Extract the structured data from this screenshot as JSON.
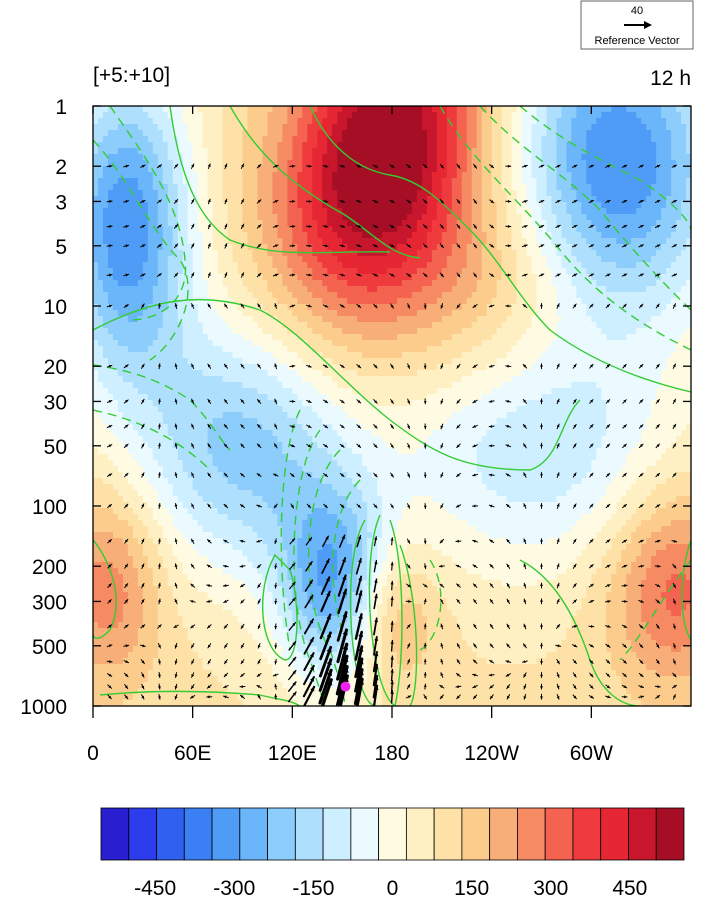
{
  "chart_data": {
    "type": "heatmap",
    "title_left": "[+5:+10]",
    "title_right": "12 h",
    "reference_vector": {
      "value": "40",
      "label": "Reference Vector"
    },
    "x_ticks": [
      "0",
      "60E",
      "120E",
      "180",
      "120W",
      "60W"
    ],
    "x_tick_lon": [
      0,
      60,
      120,
      180,
      240,
      300
    ],
    "x_range": [
      0,
      360
    ],
    "y_ticks": [
      "1",
      "2",
      "3",
      "5",
      "10",
      "20",
      "30",
      "50",
      "100",
      "200",
      "300",
      "500",
      "1000"
    ],
    "y_tick_values": [
      1,
      2,
      3,
      5,
      10,
      20,
      30,
      50,
      100,
      200,
      300,
      500,
      1000
    ],
    "y_range": [
      1,
      1000
    ],
    "y_scale": "log",
    "y_reversed": true,
    "colorbar": {
      "tick_labels": [
        "-450",
        "-300",
        "-150",
        "0",
        "150",
        "300",
        "450"
      ],
      "tick_values": [
        -450,
        -300,
        -150,
        0,
        150,
        300,
        450
      ],
      "levels": [
        -550,
        -500,
        -450,
        -400,
        -350,
        -300,
        -250,
        -200,
        -150,
        -100,
        -50,
        0,
        50,
        100,
        150,
        200,
        250,
        300,
        350,
        400,
        450,
        500,
        550
      ],
      "colors": [
        "#2a1fd0",
        "#2d3cec",
        "#3060f0",
        "#3b7ff5",
        "#4f9cf7",
        "#6bb6fa",
        "#8ccdfc",
        "#aee0fd",
        "#cdefff",
        "#eafaff",
        "#fffbe2",
        "#fff0c4",
        "#fde1a6",
        "#fbcc8c",
        "#f8ae78",
        "#f68a62",
        "#f4634f",
        "#ef3b3d",
        "#e62733",
        "#c8172d",
        "#a50e24"
      ]
    },
    "contour_color": "#33cc33",
    "source_marker": {
      "lon": 152,
      "p": 800,
      "color": "#ee22ee"
    }
  }
}
